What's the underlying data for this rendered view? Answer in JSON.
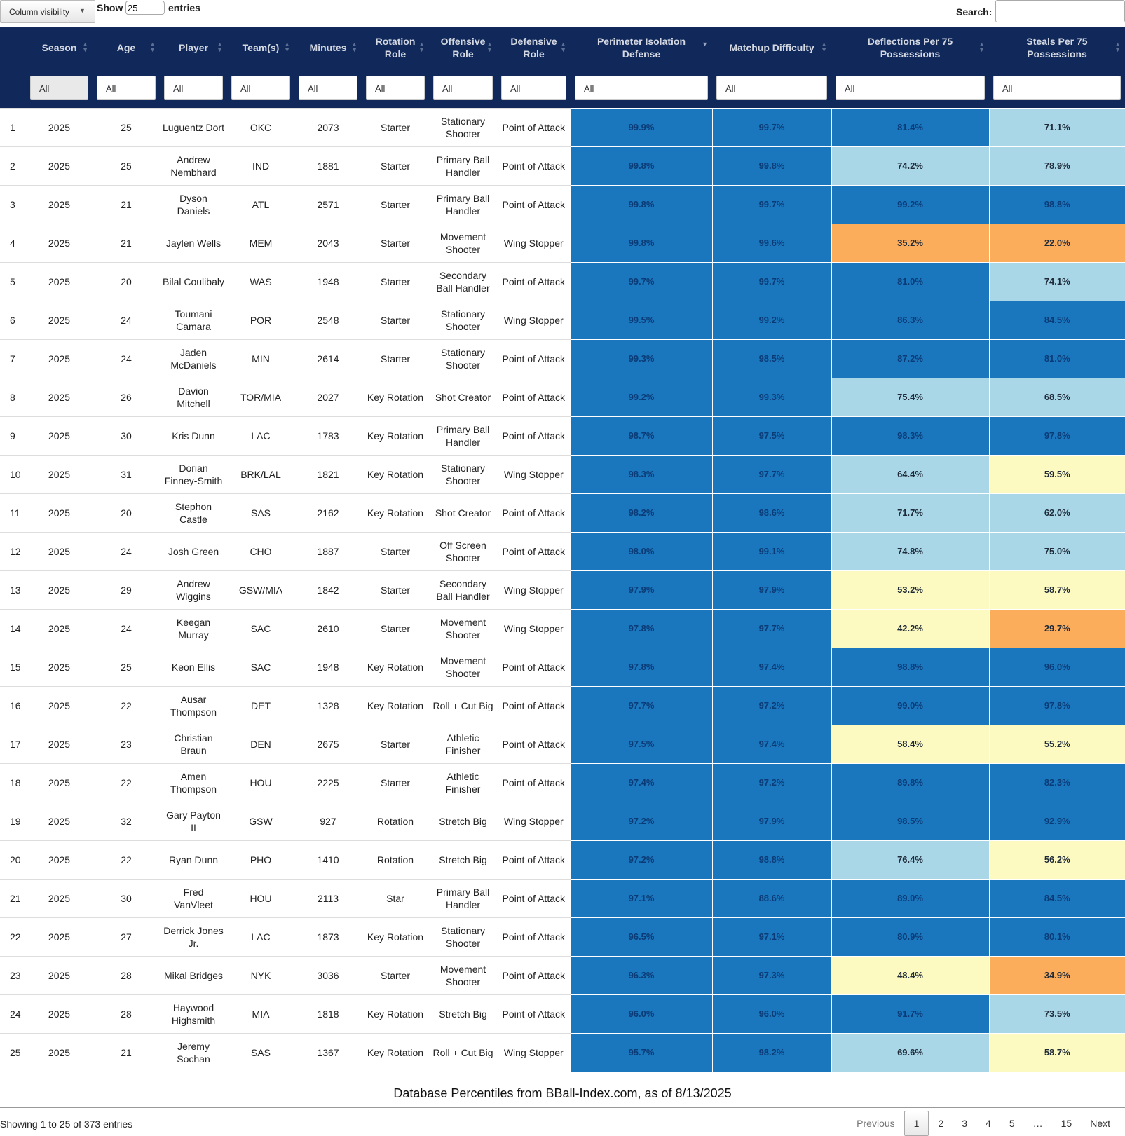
{
  "controls": {
    "column_visibility": "Column visibility",
    "show_label": "Show",
    "show_value": "25",
    "entries_label": "entries",
    "search_label": "Search:",
    "search_value": ""
  },
  "columns": [
    "",
    "Season",
    "Age",
    "Player",
    "Team(s)",
    "Minutes",
    "Rotation Role",
    "Offensive Role",
    "Defensive Role",
    "Perimeter Isolation Defense",
    "Matchup Difficulty",
    "Deflections Per 75 Possessions",
    "Steals Per 75 Possessions"
  ],
  "filters": [
    "All",
    "All",
    "All",
    "All",
    "All",
    "All",
    "All",
    "All",
    "All",
    "All",
    "All",
    "All"
  ],
  "colors": {
    "header_bg": "#10295a",
    "dark_blue": "#1a76bd",
    "light_blue": "#a9d7e8",
    "yellow": "#fdfac1",
    "orange": "#fbad5c"
  },
  "rows": [
    [
      "1",
      "2025",
      "25",
      "Luguentz Dort",
      "OKC",
      "2073",
      "Starter",
      "Stationary Shooter",
      "Point of Attack",
      "99.9%",
      "99.7%",
      "81.4%",
      "71.1%"
    ],
    [
      "2",
      "2025",
      "25",
      "Andrew Nembhard",
      "IND",
      "1881",
      "Starter",
      "Primary Ball Handler",
      "Point of Attack",
      "99.8%",
      "99.8%",
      "74.2%",
      "78.9%"
    ],
    [
      "3",
      "2025",
      "21",
      "Dyson Daniels",
      "ATL",
      "2571",
      "Starter",
      "Primary Ball Handler",
      "Point of Attack",
      "99.8%",
      "99.7%",
      "99.2%",
      "98.8%"
    ],
    [
      "4",
      "2025",
      "21",
      "Jaylen Wells",
      "MEM",
      "2043",
      "Starter",
      "Movement Shooter",
      "Wing Stopper",
      "99.8%",
      "99.6%",
      "35.2%",
      "22.0%"
    ],
    [
      "5",
      "2025",
      "20",
      "Bilal Coulibaly",
      "WAS",
      "1948",
      "Starter",
      "Secondary Ball Handler",
      "Point of Attack",
      "99.7%",
      "99.7%",
      "81.0%",
      "74.1%"
    ],
    [
      "6",
      "2025",
      "24",
      "Toumani Camara",
      "POR",
      "2548",
      "Starter",
      "Stationary Shooter",
      "Wing Stopper",
      "99.5%",
      "99.2%",
      "86.3%",
      "84.5%"
    ],
    [
      "7",
      "2025",
      "24",
      "Jaden McDaniels",
      "MIN",
      "2614",
      "Starter",
      "Stationary Shooter",
      "Point of Attack",
      "99.3%",
      "98.5%",
      "87.2%",
      "81.0%"
    ],
    [
      "8",
      "2025",
      "26",
      "Davion Mitchell",
      "TOR/MIA",
      "2027",
      "Key Rotation",
      "Shot Creator",
      "Point of Attack",
      "99.2%",
      "99.3%",
      "75.4%",
      "68.5%"
    ],
    [
      "9",
      "2025",
      "30",
      "Kris Dunn",
      "LAC",
      "1783",
      "Key Rotation",
      "Primary Ball Handler",
      "Point of Attack",
      "98.7%",
      "97.5%",
      "98.3%",
      "97.8%"
    ],
    [
      "10",
      "2025",
      "31",
      "Dorian Finney-Smith",
      "BRK/LAL",
      "1821",
      "Key Rotation",
      "Stationary Shooter",
      "Wing Stopper",
      "98.3%",
      "97.7%",
      "64.4%",
      "59.5%"
    ],
    [
      "11",
      "2025",
      "20",
      "Stephon Castle",
      "SAS",
      "2162",
      "Key Rotation",
      "Shot Creator",
      "Point of Attack",
      "98.2%",
      "98.6%",
      "71.7%",
      "62.0%"
    ],
    [
      "12",
      "2025",
      "24",
      "Josh Green",
      "CHO",
      "1887",
      "Starter",
      "Off Screen Shooter",
      "Point of Attack",
      "98.0%",
      "99.1%",
      "74.8%",
      "75.0%"
    ],
    [
      "13",
      "2025",
      "29",
      "Andrew Wiggins",
      "GSW/MIA",
      "1842",
      "Starter",
      "Secondary Ball Handler",
      "Wing Stopper",
      "97.9%",
      "97.9%",
      "53.2%",
      "58.7%"
    ],
    [
      "14",
      "2025",
      "24",
      "Keegan Murray",
      "SAC",
      "2610",
      "Starter",
      "Movement Shooter",
      "Wing Stopper",
      "97.8%",
      "97.7%",
      "42.2%",
      "29.7%"
    ],
    [
      "15",
      "2025",
      "25",
      "Keon Ellis",
      "SAC",
      "1948",
      "Key Rotation",
      "Movement Shooter",
      "Point of Attack",
      "97.8%",
      "97.4%",
      "98.8%",
      "96.0%"
    ],
    [
      "16",
      "2025",
      "22",
      "Ausar Thompson",
      "DET",
      "1328",
      "Key Rotation",
      "Roll + Cut Big",
      "Point of Attack",
      "97.7%",
      "97.2%",
      "99.0%",
      "97.8%"
    ],
    [
      "17",
      "2025",
      "23",
      "Christian Braun",
      "DEN",
      "2675",
      "Starter",
      "Athletic Finisher",
      "Point of Attack",
      "97.5%",
      "97.4%",
      "58.4%",
      "55.2%"
    ],
    [
      "18",
      "2025",
      "22",
      "Amen Thompson",
      "HOU",
      "2225",
      "Starter",
      "Athletic Finisher",
      "Point of Attack",
      "97.4%",
      "97.2%",
      "89.8%",
      "82.3%"
    ],
    [
      "19",
      "2025",
      "32",
      "Gary Payton II",
      "GSW",
      "927",
      "Rotation",
      "Stretch Big",
      "Wing Stopper",
      "97.2%",
      "97.9%",
      "98.5%",
      "92.9%"
    ],
    [
      "20",
      "2025",
      "22",
      "Ryan Dunn",
      "PHO",
      "1410",
      "Rotation",
      "Stretch Big",
      "Point of Attack",
      "97.2%",
      "98.8%",
      "76.4%",
      "56.2%"
    ],
    [
      "21",
      "2025",
      "30",
      "Fred VanVleet",
      "HOU",
      "2113",
      "Star",
      "Primary Ball Handler",
      "Point of Attack",
      "97.1%",
      "88.6%",
      "89.0%",
      "84.5%"
    ],
    [
      "22",
      "2025",
      "27",
      "Derrick Jones Jr.",
      "LAC",
      "1873",
      "Key Rotation",
      "Stationary Shooter",
      "Point of Attack",
      "96.5%",
      "97.1%",
      "80.9%",
      "80.1%"
    ],
    [
      "23",
      "2025",
      "28",
      "Mikal Bridges",
      "NYK",
      "3036",
      "Starter",
      "Movement Shooter",
      "Point of Attack",
      "96.3%",
      "97.3%",
      "48.4%",
      "34.9%"
    ],
    [
      "24",
      "2025",
      "28",
      "Haywood Highsmith",
      "MIA",
      "1818",
      "Key Rotation",
      "Stretch Big",
      "Point of Attack",
      "96.0%",
      "96.0%",
      "91.7%",
      "73.5%"
    ],
    [
      "25",
      "2025",
      "21",
      "Jeremy Sochan",
      "SAS",
      "1367",
      "Key Rotation",
      "Roll + Cut Big",
      "Wing Stopper",
      "95.7%",
      "98.2%",
      "69.6%",
      "58.7%"
    ]
  ],
  "caption": "Database Percentiles from BBall-Index.com, as of 8/13/2025",
  "info": "Showing 1 to 25 of 373 entries",
  "pagination": {
    "previous": "Previous",
    "pages": [
      "1",
      "2",
      "3",
      "4",
      "5",
      "…",
      "15"
    ],
    "current": "1",
    "next": "Next"
  }
}
